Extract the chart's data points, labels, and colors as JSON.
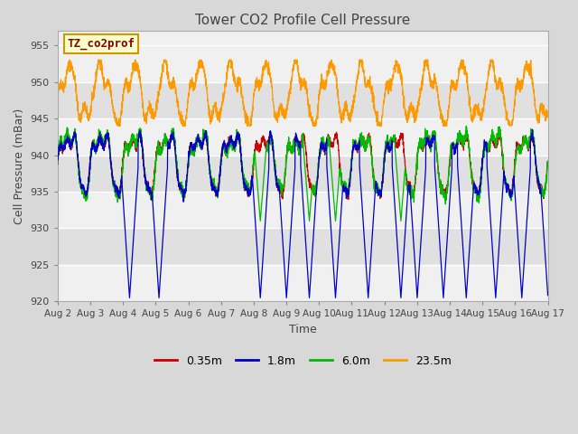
{
  "title": "Tower CO2 Profile Cell Pressure",
  "xlabel": "Time",
  "ylabel": "Cell Pressure (mBar)",
  "ylim": [
    920,
    957
  ],
  "yticks": [
    920,
    925,
    930,
    935,
    940,
    945,
    950,
    955
  ],
  "xlim_days": [
    0,
    15
  ],
  "xtick_labels": [
    "Aug 2",
    "Aug 3",
    "Aug 4",
    "Aug 5",
    "Aug 6",
    "Aug 7",
    "Aug 8",
    "Aug 9",
    "Aug 10",
    "Aug 11",
    "Aug 12",
    "Aug 13",
    "Aug 14",
    "Aug 15",
    "Aug 16",
    "Aug 17"
  ],
  "series_colors": [
    "#cc0000",
    "#0000cc",
    "#00bb00",
    "#ff9900"
  ],
  "series_labels": [
    "0.35m",
    "1.8m",
    "6.0m",
    "23.5m"
  ],
  "legend_label": "TZ_co2prof",
  "legend_color": "#880000",
  "legend_bg": "#ffffcc",
  "legend_border": "#cc9900",
  "bg_color": "#d8d8d8",
  "plot_bg_light": "#f0f0f0",
  "plot_bg_dark": "#e0e0e0",
  "grid_color": "#ffffff",
  "title_color": "#444444",
  "axis_label_color": "#444444",
  "tick_color": "#444444"
}
